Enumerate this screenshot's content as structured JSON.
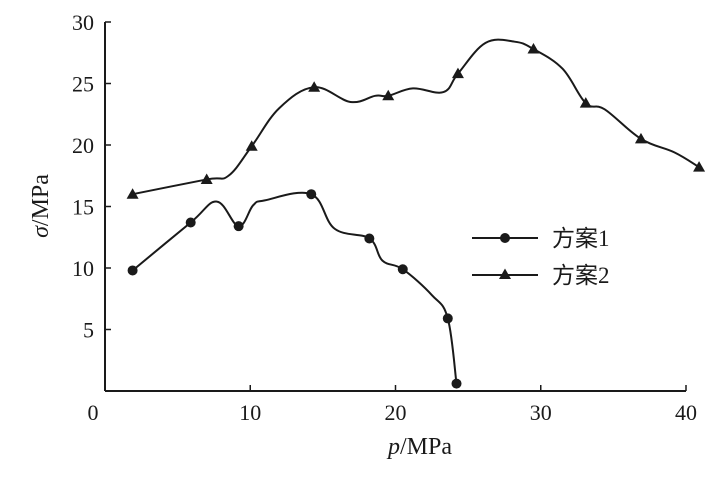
{
  "chart_data": {
    "type": "line",
    "title": "",
    "xlabel_var": "p",
    "xlabel_unit": "/MPa",
    "ylabel_var": "σ",
    "ylabel_unit": "/MPa",
    "xlim": [
      0,
      40
    ],
    "ylim": [
      0,
      30
    ],
    "xticks": [
      0,
      10,
      20,
      30,
      40
    ],
    "yticks": [
      5,
      10,
      15,
      20,
      25,
      30
    ],
    "grid": false,
    "legend_position": "right",
    "series": [
      {
        "name": "方案1",
        "marker": "circle",
        "color": "#1a1a1a",
        "x": [
          1.9,
          5.9,
          7.7,
          9.2,
          10.2,
          11.0,
          14.2,
          15.8,
          18.2,
          19.1,
          20.5,
          22.5,
          23.6,
          24.2
        ],
        "y": [
          9.8,
          13.7,
          15.4,
          13.4,
          15.1,
          15.5,
          16.0,
          13.2,
          12.4,
          10.6,
          9.9,
          7.8,
          5.9,
          0.6
        ],
        "markers_at": [
          0,
          1,
          3,
          6,
          8,
          10,
          12,
          13
        ]
      },
      {
        "name": "方案2",
        "marker": "triangle",
        "color": "#1a1a1a",
        "x": [
          1.9,
          7.0,
          8.5,
          10.1,
          12.0,
          14.4,
          16.9,
          18.6,
          19.5,
          21.2,
          23.3,
          24.3,
          26.2,
          28.2,
          29.5,
          31.5,
          33.1,
          34.4,
          36.9,
          39.2,
          40.9
        ],
        "y": [
          16.0,
          17.2,
          17.5,
          19.9,
          23.0,
          24.7,
          23.5,
          24.0,
          24.0,
          24.6,
          24.3,
          25.8,
          28.3,
          28.4,
          27.8,
          26.2,
          23.4,
          22.9,
          20.5,
          19.4,
          18.2
        ],
        "markers_at": [
          0,
          1,
          3,
          5,
          8,
          11,
          14,
          16,
          18,
          20
        ]
      }
    ]
  }
}
